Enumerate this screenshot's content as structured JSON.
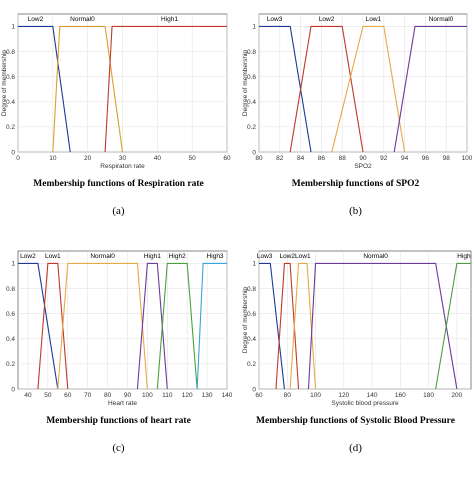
{
  "chart_data": [
    {
      "type": "line",
      "title": "Membership functions of Respiration rate",
      "panel_letter": "(a)",
      "xlabel": "Respiraton rate",
      "ylabel": "Degree of membership",
      "xlim": [
        0,
        60
      ],
      "ylim": [
        0,
        1
      ],
      "xticks": [
        "0",
        "10",
        "20",
        "30",
        "40",
        "50",
        "60"
      ],
      "yticks": [
        "0",
        "0.2",
        "0.4",
        "0.6",
        "0.8",
        "1"
      ],
      "series": [
        {
          "name": "Low2",
          "color": "#1f3a93",
          "x": [
            0,
            10,
            15
          ],
          "y": [
            1,
            1,
            0
          ]
        },
        {
          "name": "Normal0",
          "color": "#d9a030",
          "x": [
            10,
            12,
            25,
            30
          ],
          "y": [
            0,
            1,
            1,
            0
          ]
        },
        {
          "name": "High1",
          "color": "#c0392b",
          "x": [
            25,
            27,
            60
          ],
          "y": [
            0,
            1,
            1
          ]
        }
      ]
    },
    {
      "type": "line",
      "title": "Membership functions of SPO2",
      "panel_letter": "(b)",
      "xlabel": "SPO2",
      "ylabel": "Degree of membership",
      "xlim": [
        80,
        100
      ],
      "ylim": [
        0,
        1
      ],
      "xticks": [
        "80",
        "82",
        "84",
        "86",
        "88",
        "90",
        "92",
        "94",
        "96",
        "98",
        "100"
      ],
      "yticks": [
        "0",
        "0.2",
        "0.4",
        "0.6",
        "0.8",
        "1"
      ],
      "series": [
        {
          "name": "Low3",
          "color": "#1f3a93",
          "x": [
            80,
            83,
            85
          ],
          "y": [
            1,
            1,
            0
          ]
        },
        {
          "name": "Low2",
          "color": "#c0392b",
          "x": [
            83,
            85,
            88,
            90
          ],
          "y": [
            0,
            1,
            1,
            0
          ]
        },
        {
          "name": "Low1",
          "color": "#e8a948",
          "x": [
            87,
            90,
            92,
            94
          ],
          "y": [
            0,
            1,
            1,
            0
          ]
        },
        {
          "name": "Normal0",
          "color": "#6c3a99",
          "x": [
            93,
            95,
            100
          ],
          "y": [
            0,
            1,
            1
          ]
        }
      ]
    },
    {
      "type": "line",
      "title": "Membership functions of heart rate",
      "panel_letter": "(c)",
      "xlabel": "Heart rate",
      "ylabel": "",
      "xlim": [
        35,
        140
      ],
      "ylim": [
        0,
        1
      ],
      "xticks": [
        "40",
        "50",
        "60",
        "70",
        "80",
        "90",
        "100",
        "110",
        "120",
        "130",
        "140"
      ],
      "yticks": [
        "0",
        "0.2",
        "0.4",
        "0.6",
        "0.8",
        "1"
      ],
      "series": [
        {
          "name": "Low2",
          "color": "#1f3a93",
          "x": [
            35,
            45,
            55
          ],
          "y": [
            1,
            1,
            0
          ]
        },
        {
          "name": "Low1",
          "color": "#c0392b",
          "x": [
            45,
            50,
            55,
            60
          ],
          "y": [
            0,
            1,
            1,
            0
          ]
        },
        {
          "name": "Normal0",
          "color": "#e8a948",
          "x": [
            55,
            60,
            95,
            100
          ],
          "y": [
            0,
            1,
            1,
            0
          ]
        },
        {
          "name": "High1",
          "color": "#6c3a99",
          "x": [
            95,
            100,
            105,
            110
          ],
          "y": [
            0,
            1,
            1,
            0
          ]
        },
        {
          "name": "High2",
          "color": "#4aa03f",
          "x": [
            105,
            110,
            120,
            125
          ],
          "y": [
            0,
            1,
            1,
            0
          ]
        },
        {
          "name": "High3",
          "color": "#3aa3d9",
          "x": [
            125,
            128,
            140
          ],
          "y": [
            0,
            1,
            1
          ]
        }
      ]
    },
    {
      "type": "line",
      "title": "Membership functions of Systolic Blood Pressure",
      "panel_letter": "(d)",
      "xlabel": "Systolic blood pressure",
      "ylabel": "Degree of membership",
      "xlim": [
        60,
        210
      ],
      "ylim": [
        0,
        1
      ],
      "xticks": [
        "60",
        "80",
        "100",
        "120",
        "140",
        "160",
        "180",
        "200"
      ],
      "yticks": [
        "0",
        "0.2",
        "0.4",
        "0.6",
        "0.8",
        "1"
      ],
      "series": [
        {
          "name": "Low3",
          "color": "#1f3a93",
          "x": [
            60,
            68,
            78
          ],
          "y": [
            1,
            1,
            0
          ]
        },
        {
          "name": "Low2",
          "color": "#c0392b",
          "x": [
            72,
            78,
            82,
            88
          ],
          "y": [
            0,
            1,
            1,
            0
          ]
        },
        {
          "name": "Low1",
          "color": "#e8a948",
          "x": [
            82,
            88,
            94,
            100
          ],
          "y": [
            0,
            1,
            1,
            0
          ]
        },
        {
          "name": "Normal0",
          "color": "#6c3a99",
          "x": [
            95,
            100,
            185,
            200
          ],
          "y": [
            0,
            1,
            1,
            0
          ]
        },
        {
          "name": "High",
          "color": "#4aa03f",
          "x": [
            185,
            200,
            210
          ],
          "y": [
            0,
            1,
            1
          ]
        }
      ]
    }
  ]
}
